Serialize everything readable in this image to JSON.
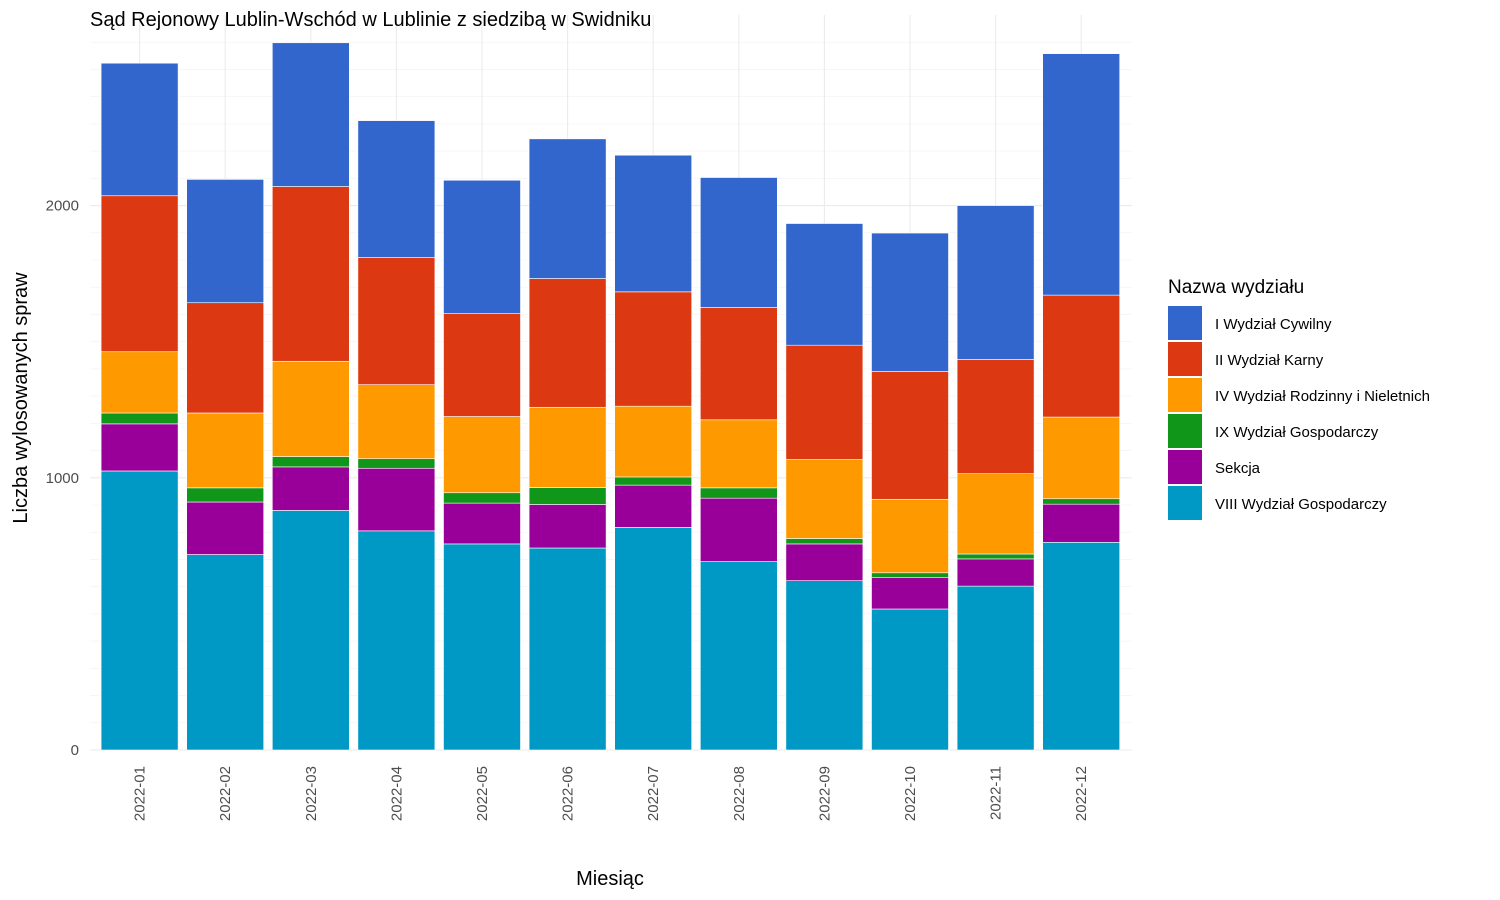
{
  "chart_data": {
    "type": "bar",
    "stacked": true,
    "title": "Sąd Rejonowy Lublin-Wschód w Lublinie z siedzibą w Swidniku",
    "xlabel": "Miesiąc",
    "ylabel": "Liczba wylosowanych spraw",
    "ylim": [
      0,
      2700
    ],
    "yticks": [
      0,
      1000,
      2000
    ],
    "grid": true,
    "legend_position": "right",
    "legend_title": "Nazwa wydziału",
    "categories": [
      "2022-01",
      "2022-02",
      "2022-03",
      "2022-04",
      "2022-05",
      "2022-06",
      "2022-07",
      "2022-08",
      "2022-09",
      "2022-10",
      "2022-11",
      "2022-12"
    ],
    "series": [
      {
        "name": "VIII Wydział Gospodarczy",
        "color": "#0099c6",
        "values": [
          1025,
          718,
          880,
          805,
          757,
          742,
          818,
          692,
          622,
          518,
          602,
          763
        ]
      },
      {
        "name": "Sekcja",
        "color": "#990099",
        "values": [
          173,
          193,
          160,
          230,
          150,
          160,
          155,
          233,
          135,
          115,
          100,
          140
        ]
      },
      {
        "name": "IX Wydział Gospodarczy",
        "color": "#109618",
        "values": [
          40,
          52,
          38,
          35,
          38,
          62,
          30,
          38,
          20,
          18,
          18,
          20
        ]
      },
      {
        "name": "IV Wydział Rodzinny i Nieletnich",
        "color": "#ff9900",
        "values": [
          225,
          275,
          350,
          272,
          280,
          295,
          260,
          250,
          290,
          270,
          295,
          300
        ]
      },
      {
        "name": "II Wydział Karny",
        "color": "#dc3912",
        "values": [
          573,
          405,
          642,
          467,
          378,
          473,
          420,
          413,
          420,
          470,
          420,
          448
        ]
      },
      {
        "name": "I Wydział Cywilny",
        "color": "#3366cc",
        "values": [
          487,
          453,
          528,
          503,
          490,
          513,
          502,
          477,
          447,
          508,
          565,
          887
        ]
      }
    ],
    "legend_order": [
      "I Wydział Cywilny",
      "II Wydział Karny",
      "IV Wydział Rodzinny i Nieletnich",
      "IX Wydział Gospodarczy",
      "Sekcja",
      "VIII Wydział Gospodarczy"
    ]
  }
}
